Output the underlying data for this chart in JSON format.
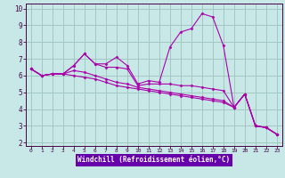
{
  "xlabel": "Windchill (Refroidissement éolien,°C)",
  "bg_color": "#c8e8e8",
  "plot_bg": "#c8e8e8",
  "grid_color": "#a0c8c0",
  "line_color": "#aa00aa",
  "xlabel_bar_color": "#6600aa",
  "xlabel_text_color": "#ffffff",
  "tick_color": "#440044",
  "spine_color": "#440044",
  "xlim": [
    -0.5,
    23.5
  ],
  "ylim": [
    1.8,
    10.3
  ],
  "xticks": [
    0,
    1,
    2,
    3,
    4,
    5,
    6,
    7,
    8,
    9,
    10,
    11,
    12,
    13,
    14,
    15,
    16,
    17,
    18,
    19,
    20,
    21,
    22,
    23
  ],
  "yticks": [
    2,
    3,
    4,
    5,
    6,
    7,
    8,
    9,
    10
  ],
  "series": [
    [
      6.4,
      6.0,
      6.1,
      6.1,
      6.6,
      7.3,
      6.7,
      6.7,
      7.1,
      6.6,
      5.5,
      5.7,
      5.6,
      7.7,
      8.6,
      8.8,
      9.7,
      9.5,
      7.8,
      4.1,
      4.9,
      3.0,
      2.9,
      2.5
    ],
    [
      6.4,
      6.0,
      6.1,
      6.1,
      6.6,
      7.3,
      6.7,
      6.5,
      6.5,
      6.4,
      5.4,
      5.5,
      5.5,
      5.5,
      5.4,
      5.4,
      5.3,
      5.2,
      5.1,
      4.1,
      4.9,
      3.0,
      2.9,
      2.5
    ],
    [
      6.4,
      6.0,
      6.1,
      6.1,
      6.3,
      6.2,
      6.0,
      5.8,
      5.6,
      5.5,
      5.3,
      5.2,
      5.1,
      5.0,
      4.9,
      4.8,
      4.7,
      4.6,
      4.5,
      4.1,
      4.9,
      3.0,
      2.9,
      2.5
    ],
    [
      6.4,
      6.0,
      6.1,
      6.1,
      6.0,
      5.9,
      5.8,
      5.6,
      5.4,
      5.3,
      5.2,
      5.1,
      5.0,
      4.9,
      4.8,
      4.7,
      4.6,
      4.5,
      4.4,
      4.1,
      4.9,
      3.0,
      2.9,
      2.5
    ]
  ]
}
